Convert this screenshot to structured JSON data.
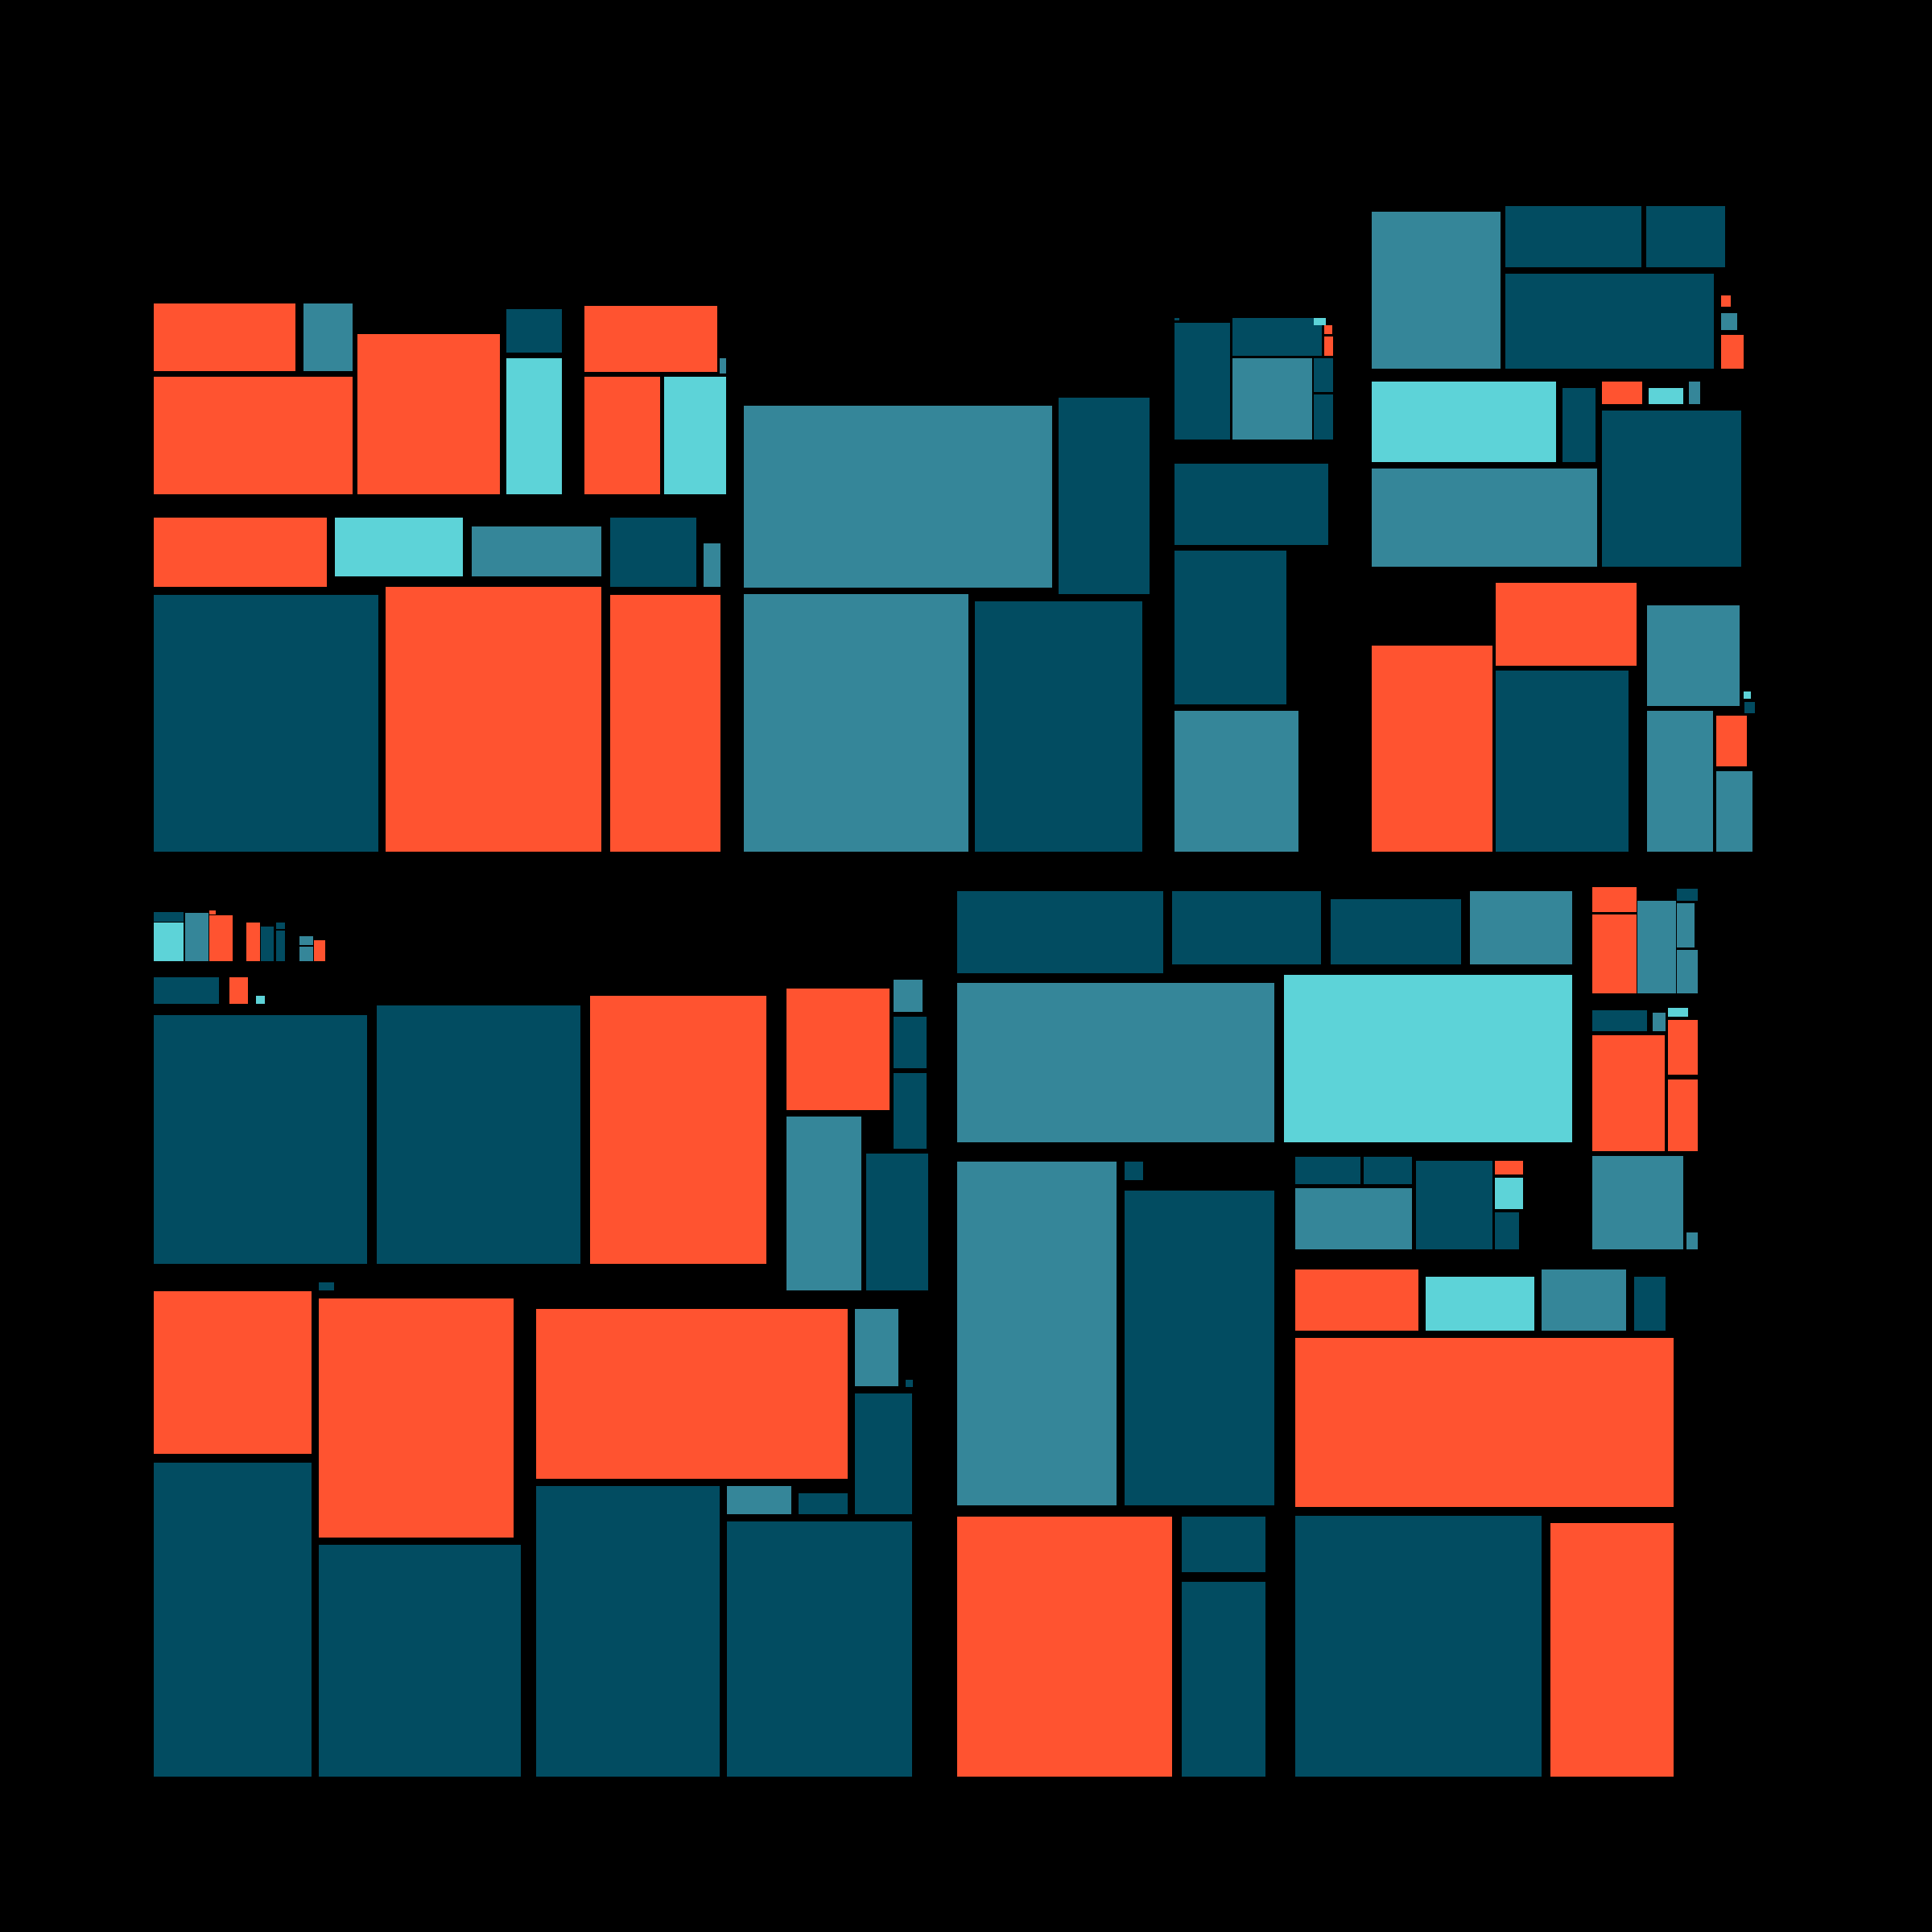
{
  "palette": {
    "background": "#000000",
    "A": "#FF5330",
    "B": "#358699",
    "C": "#024C61",
    "D": "#5DD3D8"
  },
  "tile_colors": [
    "A",
    "B",
    "A",
    "A",
    "C",
    "D",
    "A",
    "A",
    "D",
    "B",
    "A",
    "D",
    "B",
    "C",
    "B",
    "C",
    "A",
    "A",
    "B",
    "C",
    "B",
    "C",
    "C",
    "C",
    "B",
    "C",
    "C",
    "D",
    "C",
    "A",
    "A",
    "C",
    "C",
    "B",
    "B",
    "C",
    "C",
    "C",
    "A",
    "B",
    "A",
    "D",
    "C",
    "A",
    "D",
    "B",
    "C",
    "B",
    "A",
    "A",
    "C",
    "B",
    "B",
    "A",
    "B",
    "D",
    "C",
    "C",
    "D",
    "B",
    "A",
    "A",
    "A",
    "C",
    "C",
    "C",
    "B",
    "B",
    "A",
    "C",
    "A",
    "D",
    "C",
    "C",
    "A",
    "A",
    "B",
    "C",
    "C",
    "B",
    "C",
    "C",
    "A",
    "A",
    "C",
    "C",
    "A",
    "B",
    "C",
    "C",
    "B",
    "C",
    "C",
    "C",
    "C",
    "C",
    "C",
    "B",
    "B",
    "D",
    "A",
    "A",
    "B",
    "C",
    "B",
    "B",
    "C",
    "B",
    "D",
    "A",
    "A",
    "A",
    "B",
    "B",
    "B",
    "C",
    "C",
    "C",
    "C",
    "B",
    "C",
    "A",
    "D",
    "C",
    "A",
    "D",
    "B",
    "C",
    "A",
    "A",
    "C",
    "C",
    "C",
    "A"
  ]
}
